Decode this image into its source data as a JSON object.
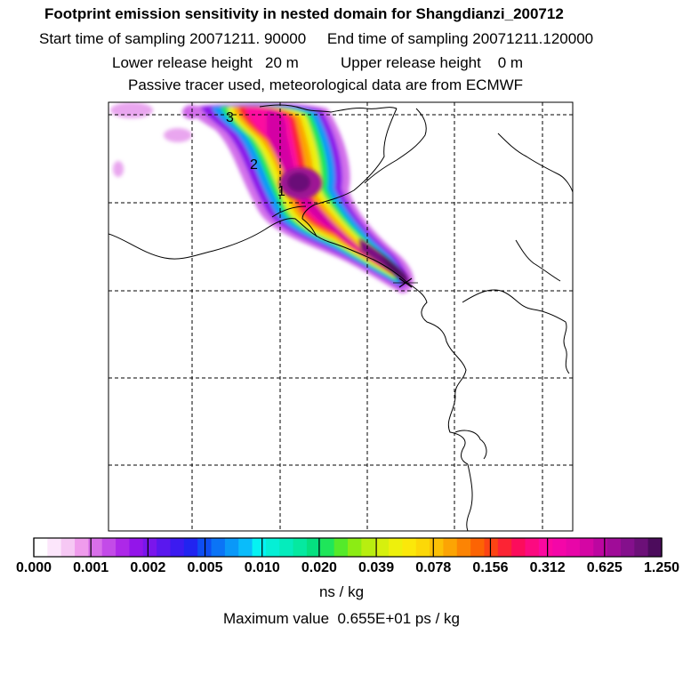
{
  "header": {
    "title": "Footprint emission sensitivity in nested domain for Shangdianzi_200712",
    "line2": "Start time of sampling 20071211. 90000     End time of sampling 20071211.120000",
    "line3": "Lower release height   20 m          Upper release height    0 m",
    "line4": "Passive tracer used, meteorological data are from ECMWF"
  },
  "map": {
    "trajectory_labels": [
      "3",
      "2",
      "1"
    ],
    "release_marker": "release-site-x"
  },
  "colorbar": {
    "tick_labels": [
      "0.000",
      "0.001",
      "0.002",
      "0.005",
      "0.010",
      "0.020",
      "0.039",
      "0.078",
      "0.156",
      "0.312",
      "0.625",
      "1.250"
    ],
    "colors": [
      "#ffffff",
      "#fce6fb",
      "#f6c8f4",
      "#ef9cec",
      "#d86fe9",
      "#c34be8",
      "#ad28e8",
      "#9315ea",
      "#7a16ec",
      "#5a18ee",
      "#3c1bf0",
      "#2124f0",
      "#0e4ef3",
      "#0b74f6",
      "#0a98f8",
      "#0abcfa",
      "#05f2f2",
      "#05efd6",
      "#05ecbc",
      "#05e9a0",
      "#05e080",
      "#1fe65a",
      "#55ea2a",
      "#8cec14",
      "#b8ee10",
      "#d6f00e",
      "#eef00c",
      "#fbe80a",
      "#fcd808",
      "#fcc006",
      "#fca404",
      "#fc8404",
      "#fc6404",
      "#fc4414",
      "#fc2434",
      "#fc0c5c",
      "#fc0a80",
      "#fc08a0",
      "#f406a8",
      "#e806a8",
      "#d406a4",
      "#bc06a0",
      "#a00c98",
      "#84108c",
      "#6c1078",
      "#4c0c5c"
    ]
  },
  "unit": "ns / kg",
  "max_value": "Maximum value  0.655E+01 ps / kg"
}
